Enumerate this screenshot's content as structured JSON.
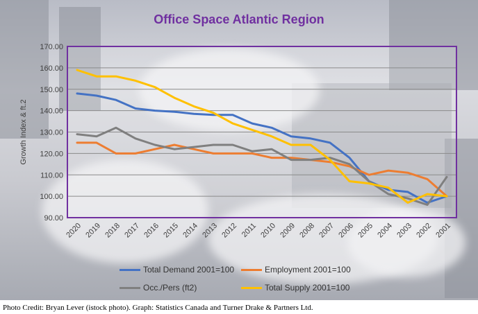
{
  "chart_data": {
    "type": "line",
    "title": "Office Space Atlantic Region",
    "ylabel": "Growth Index & ft.2",
    "xlabel": "",
    "ylim": [
      90,
      170
    ],
    "yticks": [
      "90.00",
      "100.00",
      "110.00",
      "120.00",
      "130.00",
      "140.00",
      "150.00",
      "160.00",
      "170.00"
    ],
    "categories": [
      "2020",
      "2019",
      "2018",
      "2017",
      "2016",
      "2015",
      "2014",
      "2013",
      "2012",
      "2011",
      "2010",
      "2009",
      "2008",
      "2007",
      "2006",
      "2005",
      "2004",
      "2003",
      "2002",
      "2001"
    ],
    "grid": true,
    "legend_position": "bottom",
    "series": [
      {
        "name": "Total Demand 2001=100",
        "color": "#4472c4",
        "values": [
          148,
          147,
          145,
          141,
          140,
          139.5,
          138.5,
          138,
          138,
          134,
          132,
          128,
          127,
          125,
          118,
          107,
          103,
          102,
          97,
          100
        ]
      },
      {
        "name": "Employment 2001=100",
        "color": "#ed7d31",
        "values": [
          125,
          125,
          120,
          120,
          122,
          124,
          122,
          120,
          120,
          120,
          118,
          118,
          117,
          116,
          114,
          110,
          112,
          111,
          108,
          100
        ]
      },
      {
        "name": "Occ./Pers (ft2)",
        "color": "#7f7f7f",
        "values": [
          129,
          128,
          132,
          127,
          124,
          122,
          123,
          124,
          124,
          121,
          122,
          117,
          117,
          118,
          115,
          107,
          101,
          99,
          96,
          109
        ]
      },
      {
        "name": "Total Supply 2001=100",
        "color": "#ffc000",
        "values": [
          159,
          156,
          156,
          154,
          151,
          146,
          142,
          139,
          134,
          131,
          128,
          124,
          124,
          117,
          107,
          106,
          104,
          97,
          101,
          100
        ]
      }
    ]
  },
  "credit": "Photo Credit: Bryan Lever (istock photo). Graph: Statistics Canada and Turner Drake & Partners Ltd."
}
